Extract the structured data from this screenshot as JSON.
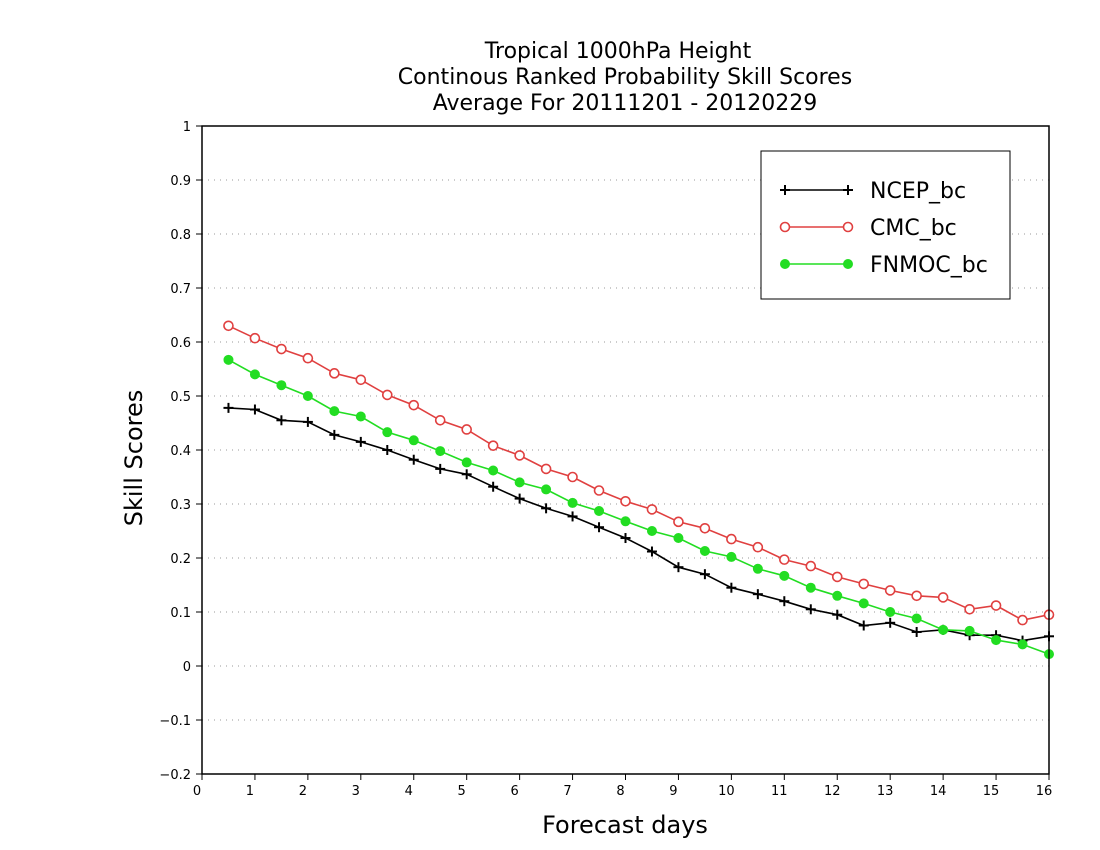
{
  "chart_data": {
    "type": "line",
    "title": [
      "Tropical 1000hPa Height",
      "Continous Ranked Probability Skill Scores",
      "Average For 20111201 - 20120229"
    ],
    "xlabel": "Forecast days",
    "ylabel": "Skill Scores",
    "xlim": [
      0,
      16
    ],
    "ylim": [
      -0.2,
      1
    ],
    "xticks": [
      0,
      1,
      2,
      3,
      4,
      5,
      6,
      7,
      8,
      9,
      10,
      11,
      12,
      13,
      14,
      15,
      16
    ],
    "xtick_labels": [
      "0",
      "1",
      "2",
      "3",
      "4",
      "5",
      "6",
      "7",
      "8",
      "9",
      "10",
      "11",
      "12",
      "13",
      "14",
      "15",
      "16"
    ],
    "yticks": [
      -0.2,
      -0.1,
      0,
      0.1,
      0.2,
      0.3,
      0.4,
      0.5,
      0.6,
      0.7,
      0.8,
      0.9,
      1
    ],
    "ytick_labels": [
      "−0.2",
      "−0.1",
      "0",
      "0.1",
      "0.2",
      "0.3",
      "0.4",
      "0.5",
      "0.6",
      "0.7",
      "0.8",
      "0.9",
      "1"
    ],
    "grid": "horizontal dotted",
    "legend_position": "top-right",
    "x": [
      0.5,
      1,
      1.5,
      2,
      2.5,
      3,
      3.5,
      4,
      4.5,
      5,
      5.5,
      6,
      6.5,
      7,
      7.5,
      8,
      8.5,
      9,
      9.5,
      10,
      10.5,
      11,
      11.5,
      12,
      12.5,
      13,
      13.5,
      14,
      14.5,
      15,
      15.5,
      16
    ],
    "series": [
      {
        "name": "NCEP_bc",
        "color": "#000000",
        "marker": "plus",
        "values": [
          0.478,
          0.475,
          0.455,
          0.452,
          0.428,
          0.415,
          0.4,
          0.382,
          0.365,
          0.355,
          0.332,
          0.31,
          0.292,
          0.277,
          0.257,
          0.237,
          0.212,
          0.183,
          0.17,
          0.145,
          0.133,
          0.12,
          0.105,
          0.095,
          0.075,
          0.08,
          0.063,
          0.067,
          0.057,
          0.057,
          0.047,
          0.055
        ]
      },
      {
        "name": "CMC_bc",
        "color": "#e04040",
        "marker": "open-circle",
        "values": [
          0.63,
          0.607,
          0.587,
          0.57,
          0.542,
          0.53,
          0.502,
          0.483,
          0.455,
          0.438,
          0.408,
          0.39,
          0.365,
          0.35,
          0.325,
          0.305,
          0.29,
          0.267,
          0.255,
          0.235,
          0.22,
          0.197,
          0.185,
          0.165,
          0.152,
          0.14,
          0.13,
          0.127,
          0.105,
          0.112,
          0.085,
          0.095
        ]
      },
      {
        "name": "FNMOC_bc",
        "color": "#22dd22",
        "marker": "filled-circle",
        "values": [
          0.567,
          0.54,
          0.52,
          0.5,
          0.472,
          0.462,
          0.433,
          0.418,
          0.398,
          0.377,
          0.362,
          0.34,
          0.327,
          0.302,
          0.287,
          0.268,
          0.25,
          0.237,
          0.213,
          0.202,
          0.18,
          0.167,
          0.145,
          0.13,
          0.116,
          0.1,
          0.088,
          0.067,
          0.065,
          0.048,
          0.04,
          0.022
        ]
      }
    ]
  }
}
